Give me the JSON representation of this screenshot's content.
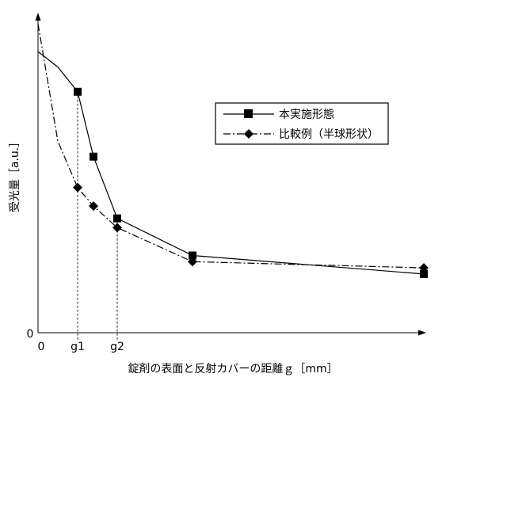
{
  "chart_data": {
    "type": "line",
    "xlabel": "錠剤の表面と反射カバーの距離ｇ［mm］",
    "ylabel": "受光量［a.u.］",
    "x_ticks": [
      "0",
      "g1",
      "g2"
    ],
    "y_ticks": [
      "0"
    ],
    "grid": false,
    "legend_position": "top-right",
    "series": [
      {
        "name": "本実施形態",
        "marker": "square",
        "line_style": "solid",
        "color": "#000000",
        "points": [
          {
            "x": 0.0,
            "y": 0.91
          },
          {
            "x": 0.5,
            "y": 0.86
          },
          {
            "x": 1.0,
            "y": 0.78
          },
          {
            "x": 1.4,
            "y": 0.57
          },
          {
            "x": 2.0,
            "y": 0.37
          },
          {
            "x": 4.0,
            "y": 0.25
          },
          {
            "x": 10.0,
            "y": 0.19
          }
        ]
      },
      {
        "name": "比較例（半球形状）",
        "marker": "diamond",
        "line_style": "dash-dot",
        "color": "#000000",
        "points": [
          {
            "x": 0.0,
            "y": 1.0
          },
          {
            "x": 0.5,
            "y": 0.62
          },
          {
            "x": 1.0,
            "y": 0.47
          },
          {
            "x": 1.4,
            "y": 0.41
          },
          {
            "x": 2.0,
            "y": 0.34
          },
          {
            "x": 4.0,
            "y": 0.23
          },
          {
            "x": 10.0,
            "y": 0.21
          }
        ]
      }
    ],
    "xlim": [
      0,
      10
    ],
    "ylim": [
      0,
      1.0
    ]
  }
}
